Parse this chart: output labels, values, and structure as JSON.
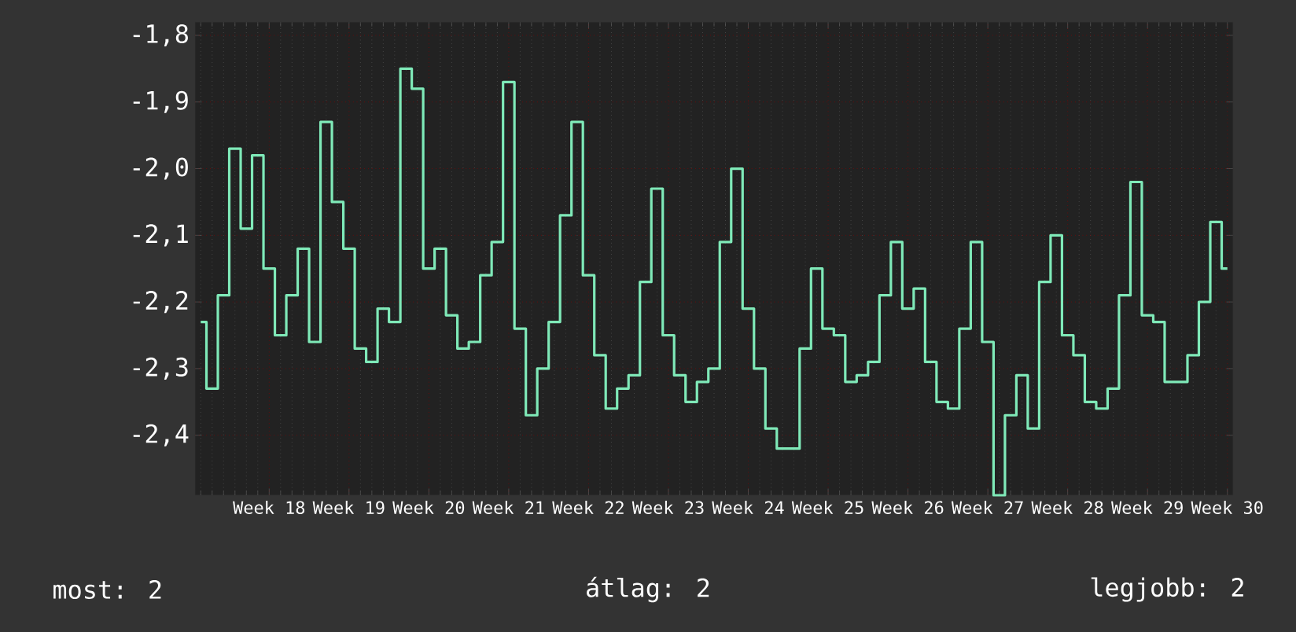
{
  "chart_data": {
    "type": "step",
    "categories": [
      null,
      null,
      null,
      null,
      null,
      null,
      "Week 18",
      null,
      null,
      null,
      null,
      null,
      null,
      "Week 19",
      null,
      null,
      null,
      null,
      null,
      null,
      "Week 20",
      null,
      null,
      null,
      null,
      null,
      null,
      "Week 21",
      null,
      null,
      null,
      null,
      null,
      null,
      "Week 22",
      null,
      null,
      null,
      null,
      null,
      null,
      "Week 23",
      null,
      null,
      null,
      null,
      null,
      null,
      "Week 24",
      null,
      null,
      null,
      null,
      null,
      null,
      "Week 25",
      null,
      null,
      null,
      null,
      null,
      null,
      "Week 26",
      null,
      null,
      null,
      null,
      null,
      null,
      "Week 27",
      null,
      null,
      null,
      null,
      null,
      null,
      "Week 28",
      null,
      null,
      null,
      null,
      null,
      null,
      "Week 29",
      null,
      null,
      null,
      null,
      null,
      null,
      "Week 30"
    ],
    "series": [
      {
        "color": "#7fe9b8",
        "values": [
          -2.23,
          -2.33,
          -2.19,
          -1.97,
          -2.09,
          -1.98,
          -2.15,
          -2.25,
          -2.19,
          -2.12,
          -2.26,
          -1.93,
          -2.05,
          -2.12,
          -2.27,
          -2.29,
          -2.21,
          -2.23,
          -1.85,
          -1.88,
          -2.15,
          -2.12,
          -2.22,
          -2.27,
          -2.26,
          -2.16,
          -2.11,
          -1.87,
          -2.24,
          -2.37,
          -2.3,
          -2.23,
          -2.07,
          -1.93,
          -2.16,
          -2.28,
          -2.36,
          -2.33,
          -2.31,
          -2.17,
          -2.03,
          -2.25,
          -2.31,
          -2.35,
          -2.32,
          -2.3,
          -2.11,
          -2.0,
          -2.21,
          -2.3,
          -2.39,
          -2.42,
          -2.42,
          -2.27,
          -2.15,
          -2.24,
          -2.25,
          -2.32,
          -2.31,
          -2.29,
          -2.19,
          -2.11,
          -2.21,
          -2.18,
          -2.29,
          -2.35,
          -2.36,
          -2.24,
          -2.11,
          -2.26,
          -2.49,
          -2.37,
          -2.31,
          -2.39,
          -2.17,
          -2.1,
          -2.25,
          -2.28,
          -2.35,
          -2.36,
          -2.33,
          -2.19,
          -2.02,
          -2.22,
          -2.23,
          -2.32,
          -2.32,
          -2.28,
          -2.2,
          -2.08,
          -2.15
        ]
      }
    ],
    "ylim": [
      -2.49,
      -1.78
    ],
    "yticks": [
      {
        "value": -2.4,
        "label": "-2,4"
      },
      {
        "value": -2.3,
        "label": "-2,3"
      },
      {
        "value": -2.2,
        "label": "-2,2"
      },
      {
        "value": -2.1,
        "label": "-2,1"
      },
      {
        "value": -2.0,
        "label": "-2,0"
      },
      {
        "value": -1.9,
        "label": "-1,9"
      },
      {
        "value": -1.8,
        "label": "-1,8"
      }
    ],
    "grid": true,
    "annotations": [
      "most: 2",
      "átlag: 2",
      "legjobb: 2"
    ]
  }
}
